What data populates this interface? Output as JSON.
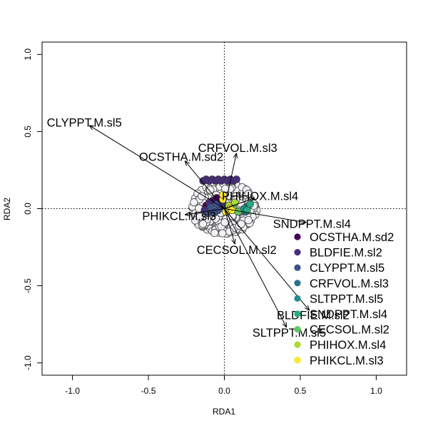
{
  "chart_data": {
    "type": "scatter",
    "title": "",
    "xlabel": "RDA1",
    "ylabel": "RDA2",
    "xlim": [
      -1.2,
      1.2
    ],
    "ylim": [
      -1.08,
      1.08
    ],
    "x_ticks": [
      -1.0,
      -0.5,
      0.0,
      0.5,
      1.0
    ],
    "y_ticks": [
      -1.0,
      -0.5,
      0.0,
      0.5,
      1.0
    ],
    "x_tick_labels": [
      "-1.0",
      "-0.5",
      "0.0",
      "0.5",
      "1.0"
    ],
    "y_tick_labels": [
      "-1.0",
      "-0.5",
      "0.0",
      "0.5",
      "1.0"
    ],
    "reference_lines": {
      "x": 0,
      "y": 0,
      "style": "dotted"
    },
    "grid": false,
    "legend_position": "bottom-right",
    "arrow_color": "#000000",
    "site_point_color": "#f2f2f6",
    "site_point_edge": "#555555",
    "arrows": [
      {
        "name": "CLYPPT.M.sl5",
        "x": -0.89,
        "y": 0.54
      },
      {
        "name": "OCSTHA.M.sd2",
        "x": -0.26,
        "y": 0.31
      },
      {
        "name": "CRFVOL.M.sl3",
        "x": 0.08,
        "y": 0.36
      },
      {
        "name": "PHIHOX.M.sl4",
        "x": 0.2,
        "y": 0.07
      },
      {
        "name": "SNDPPT.M.sl4",
        "x": 0.54,
        "y": -0.09
      },
      {
        "name": "PHIKCL.M.sl3",
        "x": -0.26,
        "y": -0.04
      },
      {
        "name": "CECSOL.M.sl2",
        "x": 0.07,
        "y": -0.23
      },
      {
        "name": "BLDFIE.M.sl2",
        "x": 0.56,
        "y": -0.66
      },
      {
        "name": "SLTPPT.M.sl5",
        "x": 0.41,
        "y": -0.77
      }
    ],
    "series": [
      {
        "name": "OCSTHA.M.sd2",
        "color": "#440154"
      },
      {
        "name": "BLDFIE.M.sl2",
        "color": "#472D7B"
      },
      {
        "name": "CLYPPT.M.sl5",
        "color": "#3B528B"
      },
      {
        "name": "CRFVOL.M.sl3",
        "color": "#2C728E"
      },
      {
        "name": "SLTPPT.M.sl5",
        "color": "#21908C"
      },
      {
        "name": "SNDPPT.M.sl4",
        "color": "#27AD81"
      },
      {
        "name": "CECSOL.M.sl2",
        "color": "#5DC863"
      },
      {
        "name": "PHIHOX.M.sl4",
        "color": "#AADC32"
      },
      {
        "name": "PHIKCL.M.sl3",
        "color": "#FDE725"
      }
    ],
    "colored_points": [
      {
        "series": 1,
        "x": -0.14,
        "y": 0.18
      },
      {
        "series": 1,
        "x": -0.12,
        "y": 0.19
      },
      {
        "series": 1,
        "x": -0.1,
        "y": 0.18
      },
      {
        "series": 1,
        "x": -0.08,
        "y": 0.19
      },
      {
        "series": 1,
        "x": -0.06,
        "y": 0.18
      },
      {
        "series": 1,
        "x": -0.04,
        "y": 0.19
      },
      {
        "series": 1,
        "x": -0.02,
        "y": 0.18
      },
      {
        "series": 1,
        "x": 0.0,
        "y": 0.19
      },
      {
        "series": 1,
        "x": 0.02,
        "y": 0.18
      },
      {
        "series": 1,
        "x": 0.04,
        "y": 0.19
      },
      {
        "series": 1,
        "x": 0.06,
        "y": 0.18
      },
      {
        "series": 1,
        "x": 0.08,
        "y": 0.19
      },
      {
        "series": 0,
        "x": -0.08,
        "y": 0.05
      },
      {
        "series": 0,
        "x": -0.05,
        "y": 0.07
      },
      {
        "series": 0,
        "x": -0.12,
        "y": 0.02
      },
      {
        "series": 0,
        "x": -0.03,
        "y": 0.01
      },
      {
        "series": 1,
        "x": -0.1,
        "y": 0.04
      },
      {
        "series": 1,
        "x": -0.06,
        "y": -0.02
      },
      {
        "series": 1,
        "x": -0.13,
        "y": -0.01
      },
      {
        "series": 1,
        "x": -0.02,
        "y": 0.03
      },
      {
        "series": 2,
        "x": -0.04,
        "y": -0.01
      },
      {
        "series": 2,
        "x": -0.11,
        "y": -0.03
      },
      {
        "series": 2,
        "x": -0.07,
        "y": -0.03
      },
      {
        "series": 2,
        "x": 0.01,
        "y": 0.0
      },
      {
        "series": 2,
        "x": -0.09,
        "y": 0.01
      },
      {
        "series": 2,
        "x": -0.05,
        "y": 0.03
      },
      {
        "series": 3,
        "x": 0.15,
        "y": 0.01
      },
      {
        "series": 3,
        "x": 0.14,
        "y": -0.02
      },
      {
        "series": 4,
        "x": 0.16,
        "y": 0.02
      },
      {
        "series": 4,
        "x": 0.13,
        "y": 0.0
      },
      {
        "series": 5,
        "x": 0.15,
        "y": -0.01
      },
      {
        "series": 5,
        "x": 0.17,
        "y": 0.03
      },
      {
        "series": 6,
        "x": 0.06,
        "y": 0.01
      },
      {
        "series": 6,
        "x": 0.09,
        "y": -0.02
      },
      {
        "series": 7,
        "x": 0.03,
        "y": 0.02
      },
      {
        "series": 7,
        "x": 0.07,
        "y": 0.04
      },
      {
        "series": 8,
        "x": -0.01,
        "y": 0.06
      },
      {
        "series": 8,
        "x": 0.01,
        "y": -0.02
      },
      {
        "series": 8,
        "x": 0.04,
        "y": 0.0
      },
      {
        "series": 8,
        "x": -0.01,
        "y": 0.09
      },
      {
        "series": 8,
        "x": 0.05,
        "y": -0.01
      }
    ]
  }
}
